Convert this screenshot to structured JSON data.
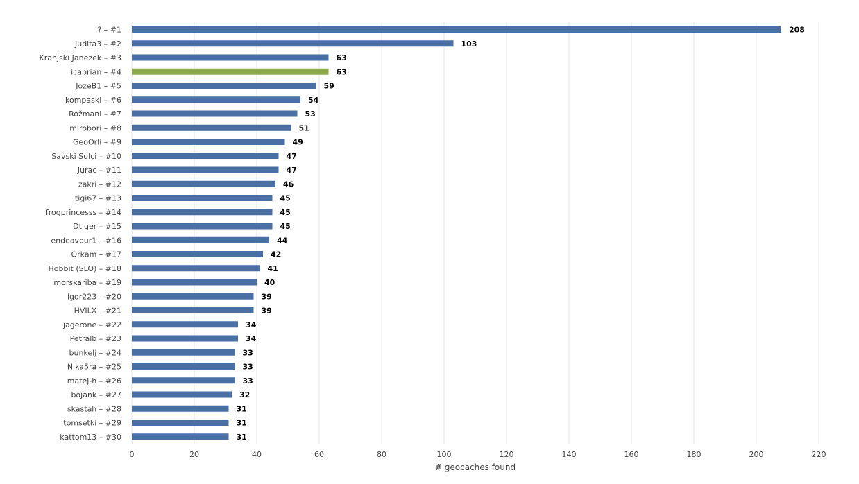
{
  "chart_data": {
    "type": "bar",
    "orientation": "horizontal",
    "categories": [
      "? – #1",
      "Judita3 – #2",
      "Kranjski Janezek – #3",
      "icabrian – #4",
      "JozeB1 – #5",
      "kompaski – #6",
      "Rožmani – #7",
      "mirobori – #8",
      "GeoOrli – #9",
      "Savski Sulci – #10",
      "Jurac – #11",
      "zakri – #12",
      "tigi67 – #13",
      "frogprincesss – #14",
      "Dtiger – #15",
      "endeavour1 – #16",
      "Orkam – #17",
      "Hobbit (SLO) – #18",
      "morskariba – #19",
      "igor223 – #20",
      "HVILX – #21",
      "jagerone – #22",
      "Petralb – #23",
      "bunkelj – #24",
      "Nika5ra – #25",
      "matej-h – #26",
      "bojank – #27",
      "skastah – #28",
      "tomsetki – #29",
      "kattom13 – #30"
    ],
    "values": [
      208,
      103,
      63,
      63,
      59,
      54,
      53,
      51,
      49,
      47,
      47,
      46,
      45,
      45,
      45,
      44,
      42,
      41,
      40,
      39,
      39,
      34,
      34,
      33,
      33,
      33,
      32,
      31,
      31,
      31
    ],
    "highlight_index": 3,
    "colors": {
      "default": "#4a6fa5",
      "highlight": "#8daa4b",
      "grid": "#e6e6e6"
    },
    "xlabel": "# geocaches found",
    "ylabel": "",
    "xlim": [
      0,
      220
    ],
    "xticks": [
      0,
      20,
      40,
      60,
      80,
      100,
      120,
      140,
      160,
      180,
      200,
      220
    ],
    "grid": true,
    "legend": "none"
  }
}
